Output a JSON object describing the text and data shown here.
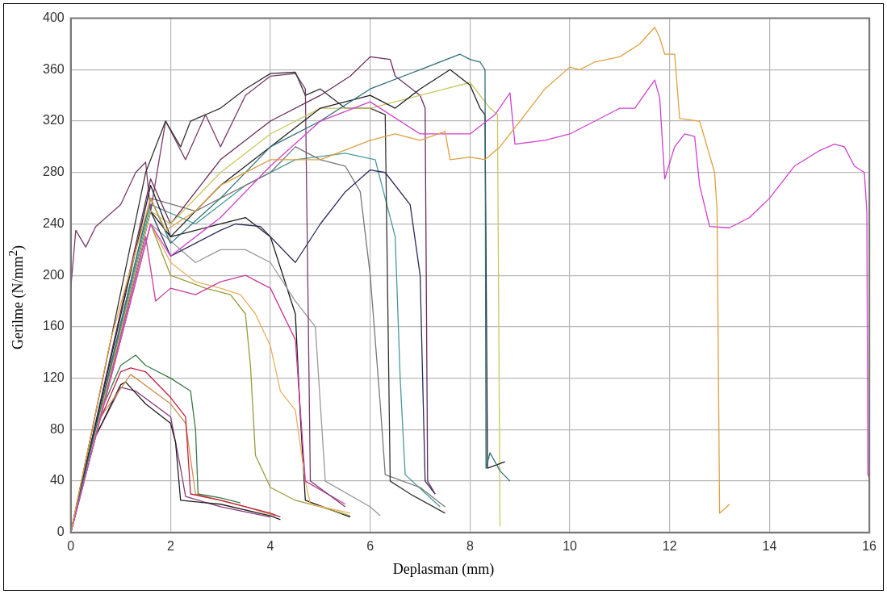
{
  "chart_data": {
    "type": "line",
    "xlabel": "Deplasman (mm)",
    "ylabel": "Gerilme (N/mm$^{2}$)",
    "xlim": [
      0,
      16
    ],
    "xticks": [
      0,
      2,
      4,
      6,
      8,
      10,
      12,
      14,
      16
    ],
    "ylim": [
      0,
      400
    ],
    "yticks": [
      0,
      40,
      80,
      120,
      160,
      200,
      240,
      280,
      320,
      360,
      400
    ],
    "grid": true,
    "marker": "none",
    "line_style": "solid",
    "series": [
      {
        "color": "#e0a040",
        "x": [
          0,
          0.8,
          1.6,
          1.9,
          2.5,
          3,
          4,
          5,
          6,
          6.5,
          7,
          7.5,
          7.6,
          8,
          8.3,
          8.6,
          9,
          9.5,
          10,
          10.2,
          10.5,
          11,
          11.4,
          11.7,
          11.8,
          11.9,
          12.1,
          12.2,
          12.6,
          12.9,
          12.95,
          13.0,
          13.2
        ],
        "values": [
          0,
          150,
          260,
          235,
          250,
          270,
          290,
          290,
          305,
          310,
          305,
          312,
          290,
          292,
          290,
          300,
          320,
          345,
          362,
          360,
          366,
          370,
          380,
          393,
          385,
          372,
          372,
          322,
          320,
          280,
          250,
          15,
          22
        ]
      },
      {
        "color": "#d040d0",
        "x": [
          0,
          1.6,
          2,
          3,
          4,
          5,
          6,
          7,
          8,
          8.5,
          8.8,
          8.9,
          9.5,
          10,
          11,
          11.3,
          11.7,
          11.8,
          11.9,
          12.1,
          12.3,
          12.5,
          12.6,
          12.8,
          13.2,
          13.6,
          14,
          14.5,
          15,
          15.3,
          15.5,
          15.7,
          15.9,
          15.95,
          15.97,
          16
        ],
        "values": [
          0,
          240,
          215,
          245,
          285,
          320,
          335,
          310,
          310,
          325,
          342,
          302,
          305,
          310,
          330,
          330,
          352,
          338,
          275,
          300,
          310,
          308,
          270,
          238,
          237,
          245,
          260,
          285,
          297,
          302,
          300,
          285,
          280,
          250,
          45,
          42
        ]
      },
      {
        "color": "#2e6e78",
        "x": [
          0,
          1.6,
          2,
          3,
          4,
          5,
          6,
          7,
          7.8,
          8,
          8.2,
          8.3,
          8.32,
          8.4,
          8.6,
          8.8
        ],
        "values": [
          0,
          260,
          225,
          260,
          300,
          320,
          345,
          360,
          372,
          368,
          366,
          360,
          50,
          62,
          48,
          40
        ]
      },
      {
        "color": "#222222",
        "x": [
          0,
          1.6,
          2,
          3,
          4,
          5,
          6,
          6.5,
          7,
          7.6,
          8,
          8.2,
          8.3,
          8.35,
          8.7
        ],
        "values": [
          0,
          270,
          230,
          270,
          300,
          330,
          340,
          330,
          345,
          360,
          348,
          330,
          325,
          50,
          55
        ]
      },
      {
        "color": "#c8c860",
        "x": [
          0,
          1.6,
          2,
          3,
          4,
          5,
          6,
          7,
          7.5,
          8,
          8.4,
          8.55,
          8.6
        ],
        "values": [
          0,
          250,
          240,
          280,
          310,
          330,
          330,
          340,
          345,
          350,
          330,
          325,
          5
        ]
      },
      {
        "color": "#6a2a5a",
        "x": [
          0,
          1.6,
          2,
          3,
          4,
          5,
          5.6,
          6,
          6.4,
          6.5,
          7,
          7.1,
          7.15,
          7.3
        ],
        "values": [
          0,
          275,
          240,
          290,
          320,
          340,
          355,
          370,
          368,
          355,
          340,
          330,
          40,
          30
        ]
      },
      {
        "color": "#333333",
        "x": [
          0,
          1.5,
          1.9,
          2.2,
          2.4,
          3,
          3.5,
          4,
          4.5,
          4.7,
          5,
          5.5,
          6,
          6.3,
          6.4,
          6.8,
          7.5
        ],
        "values": [
          0,
          280,
          320,
          300,
          320,
          330,
          345,
          357,
          358,
          340,
          345,
          330,
          330,
          325,
          40,
          30,
          15
        ]
      },
      {
        "color": "#7a3a6a",
        "x": [
          0,
          0.1,
          0.3,
          0.5,
          1,
          1.3,
          1.5,
          1.6,
          1.9,
          2.1,
          2.3,
          2.7,
          3,
          3.5,
          4,
          4.5,
          4.7,
          4.8,
          5.5
        ],
        "values": [
          190,
          235,
          222,
          238,
          255,
          280,
          288,
          250,
          320,
          305,
          290,
          325,
          300,
          340,
          355,
          357,
          345,
          40,
          20
        ]
      },
      {
        "color": "#2a2a5a",
        "x": [
          0,
          1.6,
          2,
          3,
          3.3,
          3.8,
          4.5,
          5,
          5.5,
          6,
          6.3,
          6.8,
          7,
          7.1,
          7.3
        ],
        "values": [
          0,
          250,
          215,
          235,
          240,
          238,
          210,
          240,
          265,
          282,
          280,
          255,
          200,
          40,
          30
        ]
      },
      {
        "color": "#777777",
        "x": [
          0,
          1.6,
          2.5,
          3,
          4,
          4.5,
          5,
          5.5,
          5.8,
          6,
          6.2,
          6.3,
          7,
          7.5
        ],
        "values": [
          0,
          260,
          250,
          260,
          280,
          300,
          290,
          285,
          265,
          200,
          100,
          45,
          35,
          20
        ]
      },
      {
        "color": "#4a9a9a",
        "x": [
          0,
          1.6,
          2.5,
          3.5,
          4.5,
          5.5,
          6.1,
          6.5,
          6.6,
          6.7,
          7.4
        ],
        "values": [
          0,
          255,
          240,
          270,
          290,
          295,
          290,
          230,
          120,
          45,
          20
        ]
      },
      {
        "color": "#c83c9c",
        "x": [
          0,
          1.5,
          1.7,
          2,
          2.5,
          3,
          3.5,
          4,
          4.5,
          4.7,
          5.5
        ],
        "values": [
          0,
          230,
          180,
          190,
          185,
          195,
          200,
          190,
          150,
          40,
          22
        ]
      },
      {
        "color": "#e8b060",
        "x": [
          0,
          1.6,
          2,
          2.5,
          3,
          3.4,
          3.7,
          4,
          4.2,
          4.5,
          4.7,
          4.8,
          5.6
        ],
        "values": [
          0,
          240,
          210,
          195,
          190,
          185,
          170,
          145,
          110,
          95,
          40,
          22,
          15
        ]
      },
      {
        "color": "#9a9a3a",
        "x": [
          0,
          1.6,
          2,
          2.7,
          3.2,
          3.5,
          3.6,
          3.7,
          4,
          4.5,
          5,
          5.6
        ],
        "values": [
          0,
          240,
          200,
          190,
          185,
          170,
          130,
          60,
          35,
          25,
          20,
          13
        ]
      },
      {
        "color": "#999999",
        "x": [
          0,
          1.6,
          2.5,
          3,
          3.5,
          4,
          4.5,
          4.9,
          5.1,
          6,
          6.2
        ],
        "values": [
          0,
          240,
          210,
          220,
          220,
          210,
          180,
          160,
          40,
          20,
          13
        ]
      },
      {
        "color": "#1a1a1a",
        "x": [
          0,
          1.6,
          2,
          3,
          3.5,
          4,
          4.5,
          4.6,
          4.7,
          5.6
        ],
        "values": [
          0,
          250,
          230,
          240,
          245,
          230,
          170,
          90,
          25,
          12
        ]
      },
      {
        "color": "#3a7a4a",
        "x": [
          0,
          0.5,
          1,
          1.3,
          1.5,
          2,
          2.4,
          2.5,
          2.55,
          3,
          3.4
        ],
        "values": [
          0,
          85,
          130,
          138,
          130,
          120,
          110,
          80,
          30,
          27,
          23
        ]
      },
      {
        "color": "#c02040",
        "x": [
          0,
          0.5,
          1,
          1.2,
          1.5,
          2,
          2.3,
          2.4,
          3,
          4,
          4.2
        ],
        "values": [
          0,
          80,
          125,
          128,
          125,
          105,
          90,
          30,
          25,
          15,
          12
        ]
      },
      {
        "color": "#d09050",
        "x": [
          0,
          0.6,
          1.2,
          2,
          2.3,
          2.5,
          3.5,
          4.1
        ],
        "values": [
          0,
          90,
          123,
          100,
          85,
          30,
          20,
          13
        ]
      },
      {
        "color": "#202020",
        "x": [
          0,
          0.5,
          1,
          1.1,
          1.5,
          2,
          2.1,
          2.2,
          3,
          4,
          4.2
        ],
        "values": [
          0,
          75,
          115,
          117,
          100,
          85,
          70,
          25,
          22,
          13,
          10
        ]
      },
      {
        "color": "#8a3a7a",
        "x": [
          0,
          0.5,
          1,
          1.3,
          2,
          2.2,
          2.3,
          3,
          4
        ],
        "values": [
          0,
          75,
          113,
          110,
          90,
          50,
          28,
          20,
          12
        ]
      }
    ]
  }
}
